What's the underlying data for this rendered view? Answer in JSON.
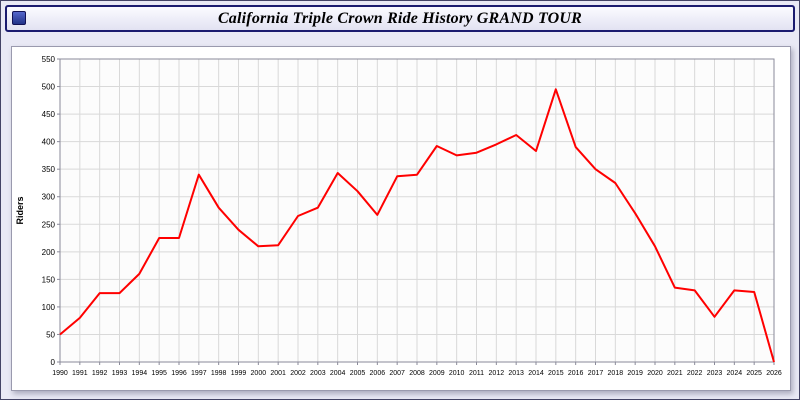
{
  "window": {
    "title": "California Triple Crown Ride History GRAND TOUR"
  },
  "chart_data": {
    "type": "line",
    "title": "California Triple Crown Ride History GRAND TOUR",
    "x": [
      1990,
      1991,
      1992,
      1993,
      1994,
      1995,
      1996,
      1997,
      1998,
      1999,
      2000,
      2001,
      2002,
      2003,
      2004,
      2005,
      2006,
      2007,
      2008,
      2009,
      2010,
      2011,
      2012,
      2013,
      2014,
      2015,
      2016,
      2017,
      2018,
      2019,
      2020,
      2021,
      2022,
      2023,
      2024,
      2025,
      2026
    ],
    "series": [
      {
        "name": "Riders",
        "color": "#ff0000",
        "values": [
          50,
          80,
          125,
          125,
          160,
          225,
          225,
          340,
          280,
          240,
          210,
          212,
          265,
          280,
          343,
          310,
          267,
          337,
          340,
          392,
          375,
          380,
          395,
          412,
          383,
          495,
          390,
          350,
          325,
          270,
          210,
          135,
          130,
          82,
          130,
          127,
          0
        ]
      }
    ],
    "xlabel": "",
    "ylabel": "Riders",
    "ylim": [
      0,
      550
    ],
    "ytick_step": 50,
    "grid": true,
    "legend": "none",
    "colors": {
      "line": "#ff0000",
      "grid": "#d9d9d9",
      "axis": "#8a8a9a",
      "plot_bg": "#fcfcfc",
      "text": "#000000"
    }
  }
}
